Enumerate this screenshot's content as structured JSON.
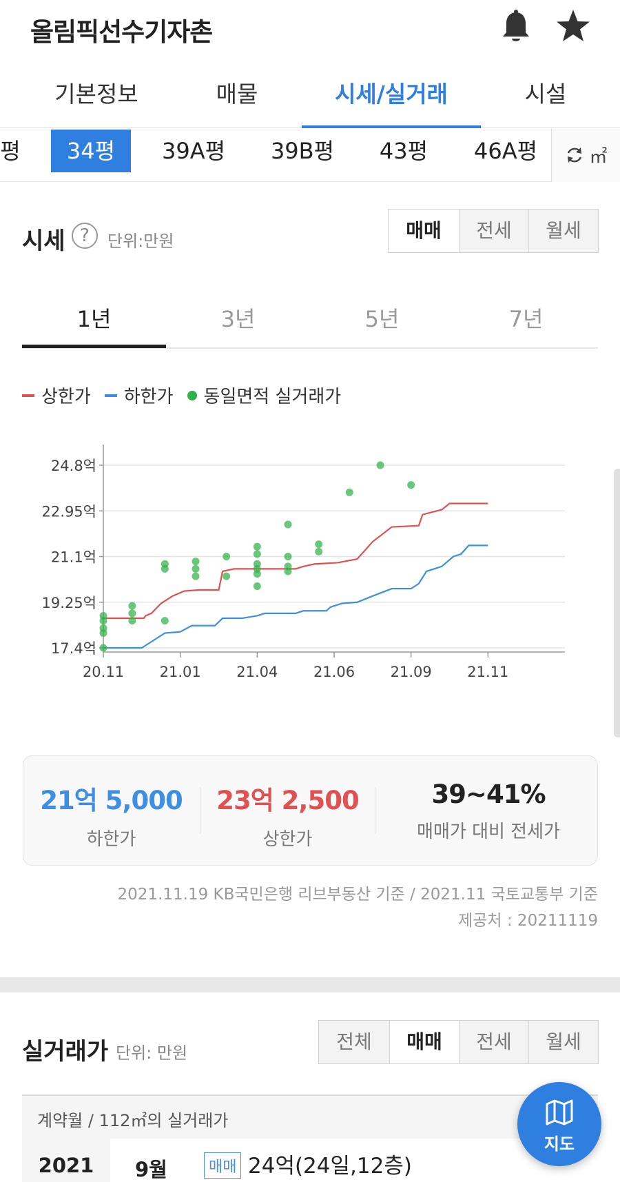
{
  "header": {
    "title": "올림픽선수기자촌",
    "bell_icon": "bell-icon",
    "star_icon": "star-icon"
  },
  "tabs": [
    {
      "label": "기본정보",
      "active": false
    },
    {
      "label": "매물",
      "active": false
    },
    {
      "label": "시세/실거래",
      "active": true
    },
    {
      "label": "시설",
      "active": false
    }
  ],
  "sizes": [
    {
      "label": "평",
      "active": false
    },
    {
      "label": "34평",
      "active": true
    },
    {
      "label": "39A평",
      "active": false
    },
    {
      "label": "39B평",
      "active": false
    },
    {
      "label": "43평",
      "active": false
    },
    {
      "label": "46A평",
      "active": false
    }
  ],
  "unit_toggle": {
    "label": "㎡"
  },
  "price_section": {
    "title": "시세",
    "help": "?",
    "unit": "단위:만원",
    "deal_types": [
      {
        "label": "매매",
        "active": true
      },
      {
        "label": "전세",
        "active": false
      },
      {
        "label": "월세",
        "active": false
      }
    ],
    "periods": [
      {
        "label": "1년",
        "active": true
      },
      {
        "label": "3년",
        "active": false
      },
      {
        "label": "5년",
        "active": false
      },
      {
        "label": "7년",
        "active": false
      }
    ]
  },
  "legend": [
    {
      "label": "상한가",
      "color": "#e05252"
    },
    {
      "label": "하한가",
      "color": "#3d8fe3"
    },
    {
      "label": "동일면적 실거래가",
      "color": "#2fb14a"
    }
  ],
  "chart_data": {
    "type": "line",
    "x_tick_labels": [
      "20.11",
      "21.01",
      "21.04",
      "21.06",
      "21.09",
      "21.11"
    ],
    "y_tick_labels": [
      "24.8억",
      "22.95억",
      "21.1억",
      "19.25억",
      "17.4억"
    ],
    "ylim": [
      17.4,
      24.8
    ],
    "xlim": [
      0,
      12
    ],
    "x_tick_positions": [
      0,
      2,
      4,
      6,
      8,
      10
    ],
    "grid": true,
    "series": [
      {
        "name": "상한가",
        "color": "#e05252",
        "points": [
          [
            0,
            18.6
          ],
          [
            1,
            18.6
          ],
          [
            1.05,
            18.6
          ],
          [
            1.1,
            18.7
          ],
          [
            1.25,
            18.8
          ],
          [
            1.5,
            19.2
          ],
          [
            1.8,
            19.5
          ],
          [
            2.1,
            19.7
          ],
          [
            2.5,
            19.75
          ],
          [
            3.0,
            19.75
          ],
          [
            3.1,
            20.5
          ],
          [
            3.4,
            20.6
          ],
          [
            4.0,
            20.6
          ],
          [
            5.0,
            20.6
          ],
          [
            5.2,
            20.7
          ],
          [
            5.5,
            20.8
          ],
          [
            6.1,
            20.85
          ],
          [
            6.6,
            21.0
          ],
          [
            7.0,
            21.7
          ],
          [
            7.5,
            22.3
          ],
          [
            8.2,
            22.35
          ],
          [
            8.3,
            22.8
          ],
          [
            8.8,
            23.0
          ],
          [
            9.0,
            23.25
          ],
          [
            9.5,
            23.25
          ],
          [
            10.0,
            23.25
          ]
        ]
      },
      {
        "name": "하한가",
        "color": "#3d8fe3",
        "points": [
          [
            0,
            17.4
          ],
          [
            1.0,
            17.4
          ],
          [
            1.3,
            17.7
          ],
          [
            1.6,
            18.0
          ],
          [
            2.0,
            18.05
          ],
          [
            2.3,
            18.3
          ],
          [
            2.9,
            18.3
          ],
          [
            3.1,
            18.6
          ],
          [
            3.6,
            18.6
          ],
          [
            4.0,
            18.7
          ],
          [
            4.2,
            18.8
          ],
          [
            5.0,
            18.8
          ],
          [
            5.2,
            18.9
          ],
          [
            5.8,
            18.9
          ],
          [
            5.9,
            19.05
          ],
          [
            6.2,
            19.2
          ],
          [
            6.6,
            19.25
          ],
          [
            7.0,
            19.5
          ],
          [
            7.5,
            19.8
          ],
          [
            8.0,
            19.8
          ],
          [
            8.2,
            20.0
          ],
          [
            8.4,
            20.5
          ],
          [
            8.8,
            20.7
          ],
          [
            9.1,
            21.1
          ],
          [
            9.3,
            21.2
          ],
          [
            9.5,
            21.55
          ],
          [
            10.0,
            21.55
          ]
        ]
      }
    ],
    "scatter": {
      "name": "동일면적 실거래가",
      "color": "#2fb14a",
      "points": [
        [
          0,
          18.7
        ],
        [
          0,
          18.5
        ],
        [
          0,
          18.2
        ],
        [
          0,
          18.0
        ],
        [
          0,
          17.4
        ],
        [
          0.75,
          19.1
        ],
        [
          0.75,
          18.8
        ],
        [
          0.75,
          18.5
        ],
        [
          1.6,
          20.8
        ],
        [
          1.6,
          20.6
        ],
        [
          1.6,
          18.5
        ],
        [
          2.4,
          20.9
        ],
        [
          2.4,
          20.6
        ],
        [
          2.4,
          20.3
        ],
        [
          3.2,
          21.1
        ],
        [
          3.2,
          20.3
        ],
        [
          4.0,
          21.5
        ],
        [
          4.0,
          21.2
        ],
        [
          4.0,
          20.8
        ],
        [
          4.0,
          20.6
        ],
        [
          4.0,
          20.4
        ],
        [
          4.0,
          19.9
        ],
        [
          4.8,
          22.4
        ],
        [
          4.8,
          21.1
        ],
        [
          4.8,
          20.7
        ],
        [
          4.8,
          20.5
        ],
        [
          5.6,
          21.6
        ],
        [
          5.6,
          21.3
        ],
        [
          6.4,
          23.7
        ],
        [
          7.2,
          24.8
        ],
        [
          8.0,
          24.0
        ]
      ]
    }
  },
  "summary": {
    "low": {
      "value": "21억 5,000",
      "label": "하한가",
      "color": "#3d8fe3"
    },
    "high": {
      "value": "23억 2,500",
      "label": "상한가",
      "color": "#e05252"
    },
    "ratio": {
      "value": "39~41%",
      "label": "매매가 대비 전세가"
    }
  },
  "source": {
    "line1": "2021.11.19 KB국민은행 리브부동산 기준 / 2021.11 국토교통부 기준",
    "line2": "제공처 : 20211119"
  },
  "transactions": {
    "title": "실거래가",
    "unit": "단위: 만원",
    "types": [
      {
        "label": "전체",
        "active": false
      },
      {
        "label": "매매",
        "active": true
      },
      {
        "label": "전세",
        "active": false
      },
      {
        "label": "월세",
        "active": false
      }
    ],
    "table_header": "계약월 / 112㎡의 실거래가",
    "rows": [
      {
        "year": "2021",
        "month": "9월",
        "tag": "매매",
        "price": "24억(24일,12층)"
      }
    ]
  },
  "map_button": {
    "label": "지도"
  }
}
